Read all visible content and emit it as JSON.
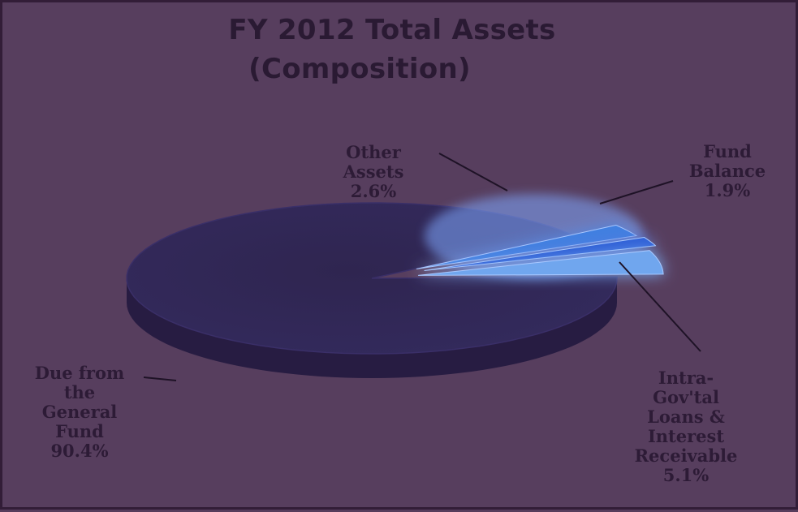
{
  "chart_data": {
    "type": "pie",
    "title": "FY 2012 Total Assets",
    "subtitle": "(Composition)",
    "slices": [
      {
        "label": "Due from the General Fund",
        "value": 90.4,
        "value_text": "90.4%",
        "color": "#332a5c",
        "label_lines": [
          "Due from",
          "the",
          "General",
          "Fund",
          "90.4%"
        ]
      },
      {
        "label": "Other Assets",
        "value": 2.6,
        "value_text": "2.6%",
        "color": "#3f7fe0",
        "label_lines": [
          "Other",
          "Assets",
          "2.6%"
        ]
      },
      {
        "label": "Fund Balance",
        "value": 1.9,
        "value_text": "1.9%",
        "color": "#2f5fd6",
        "label_lines": [
          "Fund",
          "Balance",
          "1.9%"
        ]
      },
      {
        "label": "Intra-Gov'tal Loans & Interest Receivable",
        "value": 5.1,
        "value_text": "5.1%",
        "color": "#6fa6ee",
        "label_lines": [
          "Intra-",
          "Gov'tal",
          "Loans &",
          "Interest",
          "Receivable",
          "5.1%"
        ]
      }
    ],
    "legend": "none"
  }
}
